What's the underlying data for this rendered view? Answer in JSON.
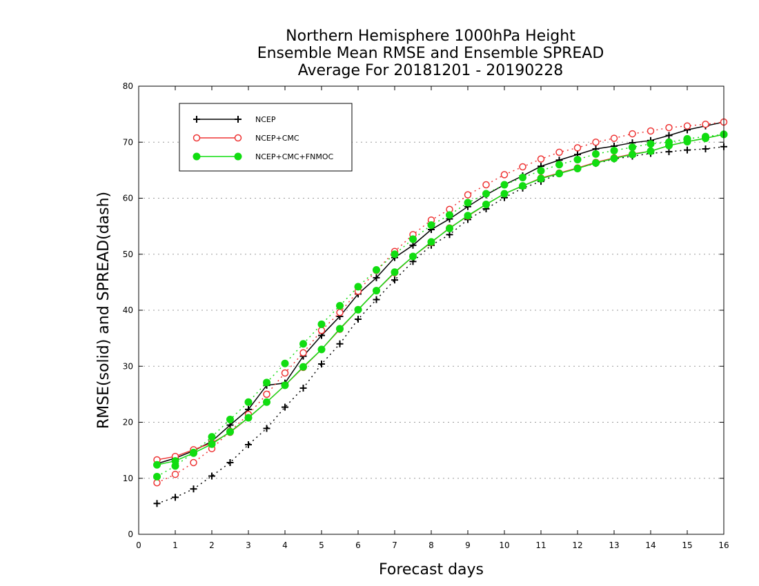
{
  "chart_data": {
    "type": "line",
    "title": [
      "Northern Hemisphere 1000hPa Height",
      "Ensemble Mean RMSE and Ensemble SPREAD",
      "Average For 20181201 - 20190228"
    ],
    "xlabel": "Forecast days",
    "ylabel": "RMSE(solid) and SPREAD(dash)",
    "xlim": [
      0,
      16
    ],
    "ylim": [
      0,
      80
    ],
    "xticks": [
      "0",
      "1",
      "2",
      "3",
      "4",
      "5",
      "6",
      "7",
      "8",
      "9",
      "10",
      "11",
      "12",
      "13",
      "14",
      "15",
      "16"
    ],
    "yticks": [
      "0",
      "10",
      "20",
      "30",
      "40",
      "50",
      "60",
      "70",
      "80"
    ],
    "grid": "horizontal dotted",
    "legend_position": "top-left",
    "x": [
      0.5,
      1,
      1.5,
      2,
      2.5,
      3,
      3.5,
      4,
      4.5,
      5,
      5.5,
      6,
      6.5,
      7,
      7.5,
      8,
      8.5,
      9,
      9.5,
      10,
      10.5,
      11,
      11.5,
      12,
      12.5,
      13,
      13.5,
      14,
      14.5,
      15,
      15.5,
      16
    ],
    "series": [
      {
        "name": "NCEP",
        "color": "#000000",
        "marker": "plus",
        "rmse": [
          12.6,
          13.6,
          14.9,
          16.6,
          19.5,
          22.3,
          26.6,
          27.0,
          31.8,
          35.5,
          38.9,
          42.9,
          45.8,
          49.4,
          51.6,
          54.4,
          56.3,
          58.5,
          60.6,
          62.4,
          64.0,
          65.7,
          66.8,
          67.8,
          68.8,
          69.3,
          69.9,
          70.3,
          71.2,
          72.2,
          72.9,
          73.6
        ],
        "spread": [
          5.5,
          6.6,
          8.1,
          10.4,
          12.8,
          16.0,
          18.9,
          22.7,
          26.1,
          30.4,
          34.0,
          38.4,
          41.9,
          45.4,
          48.7,
          51.6,
          53.5,
          56.2,
          58.1,
          60.1,
          61.8,
          63.0,
          64.4,
          65.4,
          66.2,
          67.0,
          67.5,
          68.0,
          68.3,
          68.6,
          68.8,
          69.2
        ]
      },
      {
        "name": "NCEP+CMC",
        "color": "#ee3333",
        "marker": "open-circle",
        "rmse": [
          13.3,
          13.9,
          15.1,
          16.3,
          18.2,
          20.8,
          23.6,
          26.6,
          29.8,
          33.0,
          36.6,
          40.1,
          43.5,
          46.7,
          49.6,
          52.1,
          54.7,
          56.8,
          58.9,
          60.8,
          62.2,
          63.6,
          64.5,
          65.4,
          66.4,
          67.2,
          67.9,
          68.4,
          69.4,
          70.1,
          70.7,
          71.4
        ],
        "spread": [
          9.2,
          10.7,
          12.8,
          15.3,
          18.4,
          21.4,
          25.0,
          28.8,
          32.4,
          36.4,
          39.6,
          43.4,
          47.1,
          50.5,
          53.5,
          56.1,
          58.0,
          60.6,
          62.4,
          64.2,
          65.6,
          67.0,
          68.2,
          69.0,
          70.0,
          70.7,
          71.5,
          72.0,
          72.6,
          72.9,
          73.2,
          73.6
        ]
      },
      {
        "name": "NCEP+CMC+FNMOC",
        "color": "#11dd11",
        "marker": "filled-circle",
        "rmse": [
          12.4,
          13.1,
          14.5,
          16.1,
          18.3,
          20.8,
          23.6,
          26.6,
          29.9,
          33.0,
          36.7,
          40.1,
          43.5,
          46.8,
          49.6,
          52.2,
          54.6,
          56.9,
          58.9,
          60.8,
          62.2,
          63.5,
          64.4,
          65.3,
          66.3,
          67.1,
          67.8,
          68.4,
          69.4,
          70.1,
          70.7,
          71.4
        ],
        "spread": [
          10.3,
          12.2,
          14.6,
          17.4,
          20.5,
          23.6,
          27.1,
          30.5,
          34.0,
          37.5,
          40.8,
          44.2,
          47.2,
          50.0,
          52.7,
          55.2,
          57.0,
          59.2,
          60.8,
          62.4,
          63.7,
          64.9,
          66.0,
          66.9,
          67.9,
          68.5,
          69.1,
          69.7,
          70.0,
          70.6,
          71.0,
          71.4
        ]
      }
    ]
  }
}
